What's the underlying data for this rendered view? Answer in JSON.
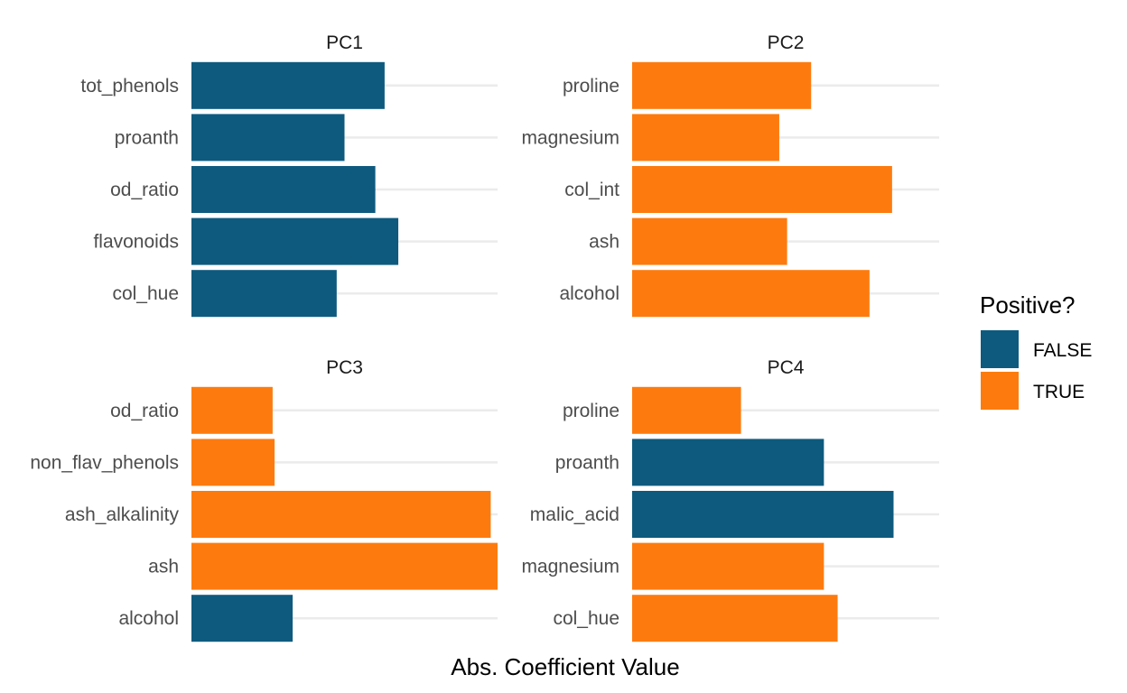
{
  "chart_data": {
    "type": "bar",
    "orientation": "horizontal",
    "facets": [
      "PC1",
      "PC2",
      "PC3",
      "PC4"
    ],
    "xlabel": "Abs. Coefficient Value",
    "grid": true,
    "legend": {
      "title": "Positive?",
      "position": "right",
      "entries": [
        {
          "label": "FALSE",
          "color": "#0e5a7e"
        },
        {
          "label": "TRUE",
          "color": "#fd7b0e"
        }
      ]
    },
    "panels": [
      {
        "title": "PC1",
        "categories": [
          "tot_phenols",
          "proanth",
          "od_ratio",
          "flavonoids",
          "col_hue"
        ],
        "values": [
          0.395,
          0.313,
          0.376,
          0.423,
          0.297
        ],
        "positive": [
          false,
          false,
          false,
          false,
          false
        ]
      },
      {
        "title": "PC2",
        "categories": [
          "proline",
          "magnesium",
          "col_int",
          "ash",
          "alcohol"
        ],
        "values": [
          0.365,
          0.3,
          0.53,
          0.316,
          0.484
        ],
        "positive": [
          true,
          true,
          true,
          true,
          true
        ]
      },
      {
        "title": "PC3",
        "categories": [
          "od_ratio",
          "non_flav_phenols",
          "ash_alkalinity",
          "ash",
          "alcohol"
        ],
        "values": [
          0.166,
          0.17,
          0.612,
          0.626,
          0.207
        ],
        "positive": [
          true,
          true,
          true,
          true,
          false
        ]
      },
      {
        "title": "PC4",
        "categories": [
          "proline",
          "proanth",
          "malic_acid",
          "magnesium",
          "col_hue"
        ],
        "values": [
          0.222,
          0.391,
          0.533,
          0.391,
          0.419
        ],
        "positive": [
          true,
          false,
          false,
          true,
          true
        ]
      }
    ]
  }
}
